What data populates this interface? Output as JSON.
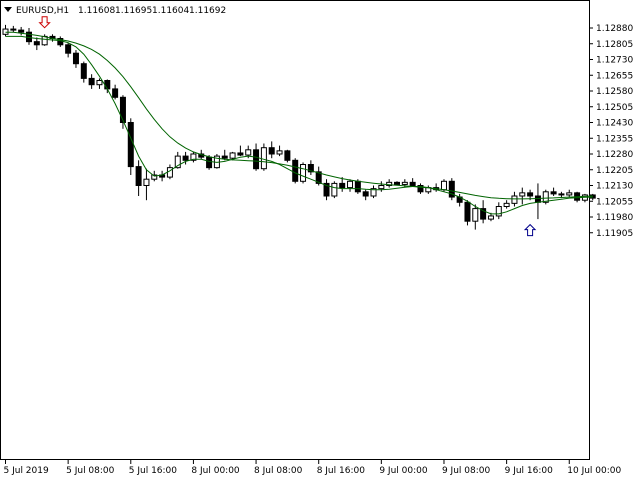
{
  "header": {
    "symbol": "EURUSD,H1",
    "open": "1.11608",
    "high": "1.11695",
    "low": "1.11604",
    "close": "1.11692"
  },
  "chart_data": {
    "type": "candlestick",
    "title": "",
    "xlabel": "",
    "ylabel": "",
    "grid": false,
    "ylim": [
      1.1187,
      1.1295
    ],
    "y_ticks": [
      1.1288,
      1.12805,
      1.1273,
      1.12655,
      1.1258,
      1.12505,
      1.1243,
      1.12355,
      1.1228,
      1.12205,
      1.1213,
      1.12055,
      1.1198,
      1.11905
    ],
    "y_tick_labels": [
      "1.12880",
      "1.12805",
      "1.12730",
      "1.12655",
      "1.12580",
      "1.12505",
      "1.12430",
      "1.12355",
      "1.12280",
      "1.12205",
      "1.12130",
      "1.12055",
      "1.11980",
      "1.11905"
    ],
    "x_tick_labels": [
      "5 Jul 2019",
      "5 Jul 08:00",
      "5 Jul 16:00",
      "8 Jul 00:00",
      "8 Jul 08:00",
      "8 Jul 16:00",
      "9 Jul 00:00",
      "9 Jul 08:00",
      "9 Jul 16:00",
      "10 Jul 00:00"
    ],
    "x_tick_bars": [
      0,
      8,
      16,
      24,
      32,
      40,
      48,
      56,
      64,
      72
    ],
    "colors": {
      "bull_body": "#ffffff",
      "bear_body": "#000000",
      "wick": "#000000",
      "ma": "#006400",
      "sell_arrow": "#cc0000",
      "buy_arrow": "#00008b"
    },
    "candles": [
      [
        1.1285,
        1.12895,
        1.1284,
        1.12875
      ],
      [
        1.12875,
        1.1289,
        1.1286,
        1.1287
      ],
      [
        1.1287,
        1.12885,
        1.12845,
        1.1286
      ],
      [
        1.1286,
        1.1288,
        1.128,
        1.12815
      ],
      [
        1.12815,
        1.12835,
        1.12775,
        1.128
      ],
      [
        1.128,
        1.1285,
        1.12795,
        1.1284
      ],
      [
        1.1284,
        1.1285,
        1.12815,
        1.1283
      ],
      [
        1.1283,
        1.1284,
        1.1279,
        1.128
      ],
      [
        1.128,
        1.1281,
        1.1274,
        1.1276
      ],
      [
        1.1276,
        1.12775,
        1.1269,
        1.1271
      ],
      [
        1.1271,
        1.1272,
        1.1262,
        1.1264
      ],
      [
        1.1264,
        1.1266,
        1.1259,
        1.1261
      ],
      [
        1.1261,
        1.1264,
        1.1259,
        1.1263
      ],
      [
        1.1263,
        1.12635,
        1.1257,
        1.1259
      ],
      [
        1.1259,
        1.1261,
        1.1254,
        1.1255
      ],
      [
        1.1255,
        1.1256,
        1.124,
        1.1243
      ],
      [
        1.1243,
        1.1245,
        1.1218,
        1.1222
      ],
      [
        1.1222,
        1.1225,
        1.1208,
        1.1213
      ],
      [
        1.1213,
        1.1221,
        1.1206,
        1.1216
      ],
      [
        1.1216,
        1.122,
        1.1215,
        1.1218
      ],
      [
        1.1218,
        1.122,
        1.1215,
        1.1217
      ],
      [
        1.1217,
        1.1223,
        1.1216,
        1.12215
      ],
      [
        1.12215,
        1.1229,
        1.1221,
        1.1227
      ],
      [
        1.1227,
        1.1229,
        1.1223,
        1.1225
      ],
      [
        1.1225,
        1.1229,
        1.1224,
        1.1228
      ],
      [
        1.1228,
        1.123,
        1.12255,
        1.12265
      ],
      [
        1.12265,
        1.12275,
        1.12205,
        1.12215
      ],
      [
        1.12215,
        1.1228,
        1.1221,
        1.1227
      ],
      [
        1.1227,
        1.123,
        1.1225,
        1.1226
      ],
      [
        1.1226,
        1.1229,
        1.1225,
        1.12285
      ],
      [
        1.12285,
        1.1232,
        1.1227,
        1.12275
      ],
      [
        1.12275,
        1.1232,
        1.1226,
        1.123
      ],
      [
        1.123,
        1.1233,
        1.122,
        1.1221
      ],
      [
        1.1221,
        1.1233,
        1.122,
        1.1231
      ],
      [
        1.1231,
        1.1234,
        1.1226,
        1.1228
      ],
      [
        1.1228,
        1.1232,
        1.1227,
        1.12295
      ],
      [
        1.12295,
        1.123,
        1.1224,
        1.1225
      ],
      [
        1.1225,
        1.1226,
        1.1214,
        1.1215
      ],
      [
        1.1215,
        1.1224,
        1.1214,
        1.1223
      ],
      [
        1.1223,
        1.1225,
        1.1218,
        1.12195
      ],
      [
        1.12195,
        1.1222,
        1.1213,
        1.1214
      ],
      [
        1.1214,
        1.1216,
        1.1206,
        1.1208
      ],
      [
        1.1208,
        1.1215,
        1.1207,
        1.1214
      ],
      [
        1.1214,
        1.1217,
        1.121,
        1.1212
      ],
      [
        1.1212,
        1.1216,
        1.121,
        1.1215
      ],
      [
        1.1215,
        1.1216,
        1.1209,
        1.121
      ],
      [
        1.121,
        1.1211,
        1.1206,
        1.1208
      ],
      [
        1.1208,
        1.1213,
        1.1207,
        1.12115
      ],
      [
        1.12115,
        1.1215,
        1.121,
        1.1213
      ],
      [
        1.1213,
        1.1216,
        1.1212,
        1.12145
      ],
      [
        1.12145,
        1.1215,
        1.1213,
        1.12135
      ],
      [
        1.12135,
        1.1216,
        1.1212,
        1.12145
      ],
      [
        1.12145,
        1.12165,
        1.12125,
        1.1213
      ],
      [
        1.1213,
        1.1214,
        1.1209,
        1.121
      ],
      [
        1.121,
        1.1213,
        1.1209,
        1.1212
      ],
      [
        1.1212,
        1.1214,
        1.121,
        1.1211
      ],
      [
        1.1211,
        1.1216,
        1.121,
        1.1215
      ],
      [
        1.1215,
        1.12165,
        1.1206,
        1.12075
      ],
      [
        1.12075,
        1.1209,
        1.1203,
        1.1205
      ],
      [
        1.1205,
        1.1206,
        1.1194,
        1.1196
      ],
      [
        1.1196,
        1.1204,
        1.1192,
        1.1202
      ],
      [
        1.1202,
        1.1206,
        1.1195,
        1.1197
      ],
      [
        1.1197,
        1.12,
        1.1196,
        1.11985
      ],
      [
        1.11985,
        1.1205,
        1.1197,
        1.1203
      ],
      [
        1.1203,
        1.1206,
        1.1202,
        1.12045
      ],
      [
        1.12045,
        1.121,
        1.1203,
        1.1208
      ],
      [
        1.1208,
        1.1212,
        1.1204,
        1.12095
      ],
      [
        1.12095,
        1.1211,
        1.1206,
        1.1208
      ],
      [
        1.1208,
        1.1214,
        1.1197,
        1.1205
      ],
      [
        1.1205,
        1.1211,
        1.1204,
        1.121
      ],
      [
        1.121,
        1.1212,
        1.1208,
        1.1209
      ],
      [
        1.1209,
        1.121,
        1.1207,
        1.12085
      ],
      [
        1.12085,
        1.1211,
        1.12075,
        1.12095
      ],
      [
        1.12095,
        1.121,
        1.1205,
        1.1206
      ],
      [
        1.1206,
        1.1209,
        1.1205,
        1.12085
      ],
      [
        1.12085,
        1.1209,
        1.1206,
        1.1207
      ]
    ],
    "ma_fast": [
      1.1284,
      1.1284,
      1.1284,
      1.12835,
      1.1283,
      1.12826,
      1.12823,
      1.1282,
      1.1281,
      1.1279,
      1.12755,
      1.12705,
      1.1265,
      1.1259,
      1.1252,
      1.1244,
      1.12355,
      1.1227,
      1.12205,
      1.12175,
      1.1218,
      1.122,
      1.12225,
      1.12245,
      1.12255,
      1.12255,
      1.12245,
      1.1224,
      1.12245,
      1.12255,
      1.12265,
      1.1227,
      1.12265,
      1.12255,
      1.12245,
      1.1223,
      1.1221,
      1.1219,
      1.12175,
      1.1216,
      1.12145,
      1.1213,
      1.1212,
      1.12115,
      1.12115,
      1.12115,
      1.12112,
      1.1211,
      1.1211,
      1.12112,
      1.12117,
      1.12122,
      1.12125,
      1.12125,
      1.1212,
      1.1211,
      1.121,
      1.1209,
      1.12075,
      1.12055,
      1.1203,
      1.1201,
      1.11995,
      1.11995,
      1.12005,
      1.1202,
      1.12035,
      1.12045,
      1.1205,
      1.12055,
      1.1206,
      1.12065,
      1.1207,
      1.12072,
      1.12074,
      1.12075
    ],
    "ma_slow": [
      1.1286,
      1.1286,
      1.12855,
      1.1285,
      1.12845,
      1.12838,
      1.1283,
      1.12825,
      1.12818,
      1.12808,
      1.12795,
      1.12778,
      1.12755,
      1.12725,
      1.1269,
      1.12648,
      1.126,
      1.12548,
      1.12495,
      1.12445,
      1.124,
      1.12362,
      1.12332,
      1.12308,
      1.1229,
      1.12277,
      1.12267,
      1.1226,
      1.12255,
      1.12252,
      1.1225,
      1.12248,
      1.12246,
      1.12243,
      1.12239,
      1.12233,
      1.12226,
      1.12218,
      1.1221,
      1.122,
      1.1219,
      1.1218,
      1.12171,
      1.12163,
      1.12156,
      1.1215,
      1.12145,
      1.12141,
      1.12137,
      1.12134,
      1.12131,
      1.12128,
      1.12125,
      1.12122,
      1.12119,
      1.12115,
      1.1211,
      1.12104,
      1.12097,
      1.1209,
      1.12083,
      1.12077,
      1.12072,
      1.12069,
      1.12067,
      1.12066,
      1.12066,
      1.12067,
      1.12068,
      1.1207,
      1.12071,
      1.12073,
      1.12075,
      1.12076,
      1.12078,
      1.1208
    ],
    "signals": [
      {
        "type": "sell",
        "bar": 5,
        "price": 1.12905
      },
      {
        "type": "buy",
        "bar": 67,
        "price": 1.1192
      }
    ]
  }
}
